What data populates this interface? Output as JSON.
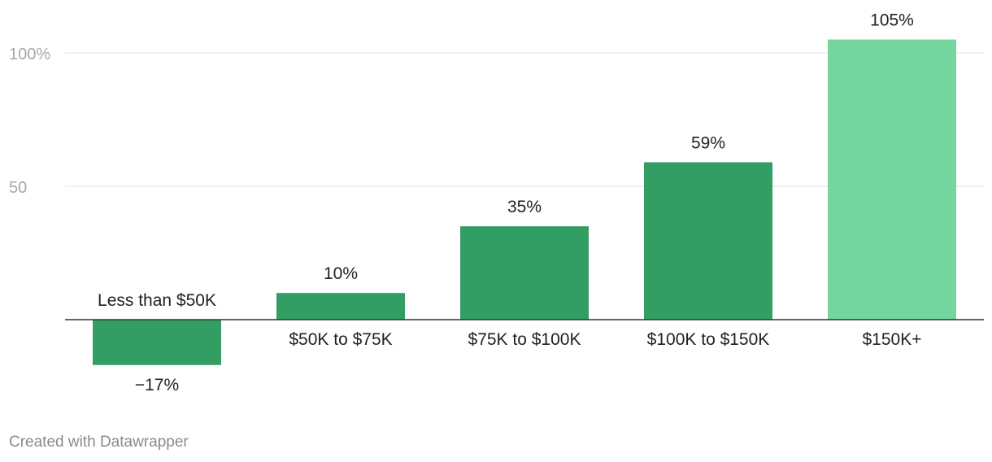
{
  "chart_data": {
    "type": "bar",
    "categories": [
      "Less than $50K",
      "$50K to $75K",
      "$75K to $100K",
      "$100K to $150K",
      "$150K+"
    ],
    "values": [
      -17,
      10,
      35,
      59,
      105
    ],
    "value_labels": [
      "−17%",
      "10%",
      "35%",
      "59%",
      "105%"
    ],
    "y_ticks": [
      {
        "value": 100,
        "label": "100%"
      },
      {
        "value": 50,
        "label": "50"
      }
    ],
    "ylim": [
      -20,
      110
    ],
    "grid": true,
    "colors": {
      "default": "#339e63",
      "highlight": "#74d59f",
      "highlight_index": 4,
      "gridline": "#e3e3e3",
      "baseline": "#333333"
    }
  },
  "footer": {
    "credit": "Created with Datawrapper"
  }
}
